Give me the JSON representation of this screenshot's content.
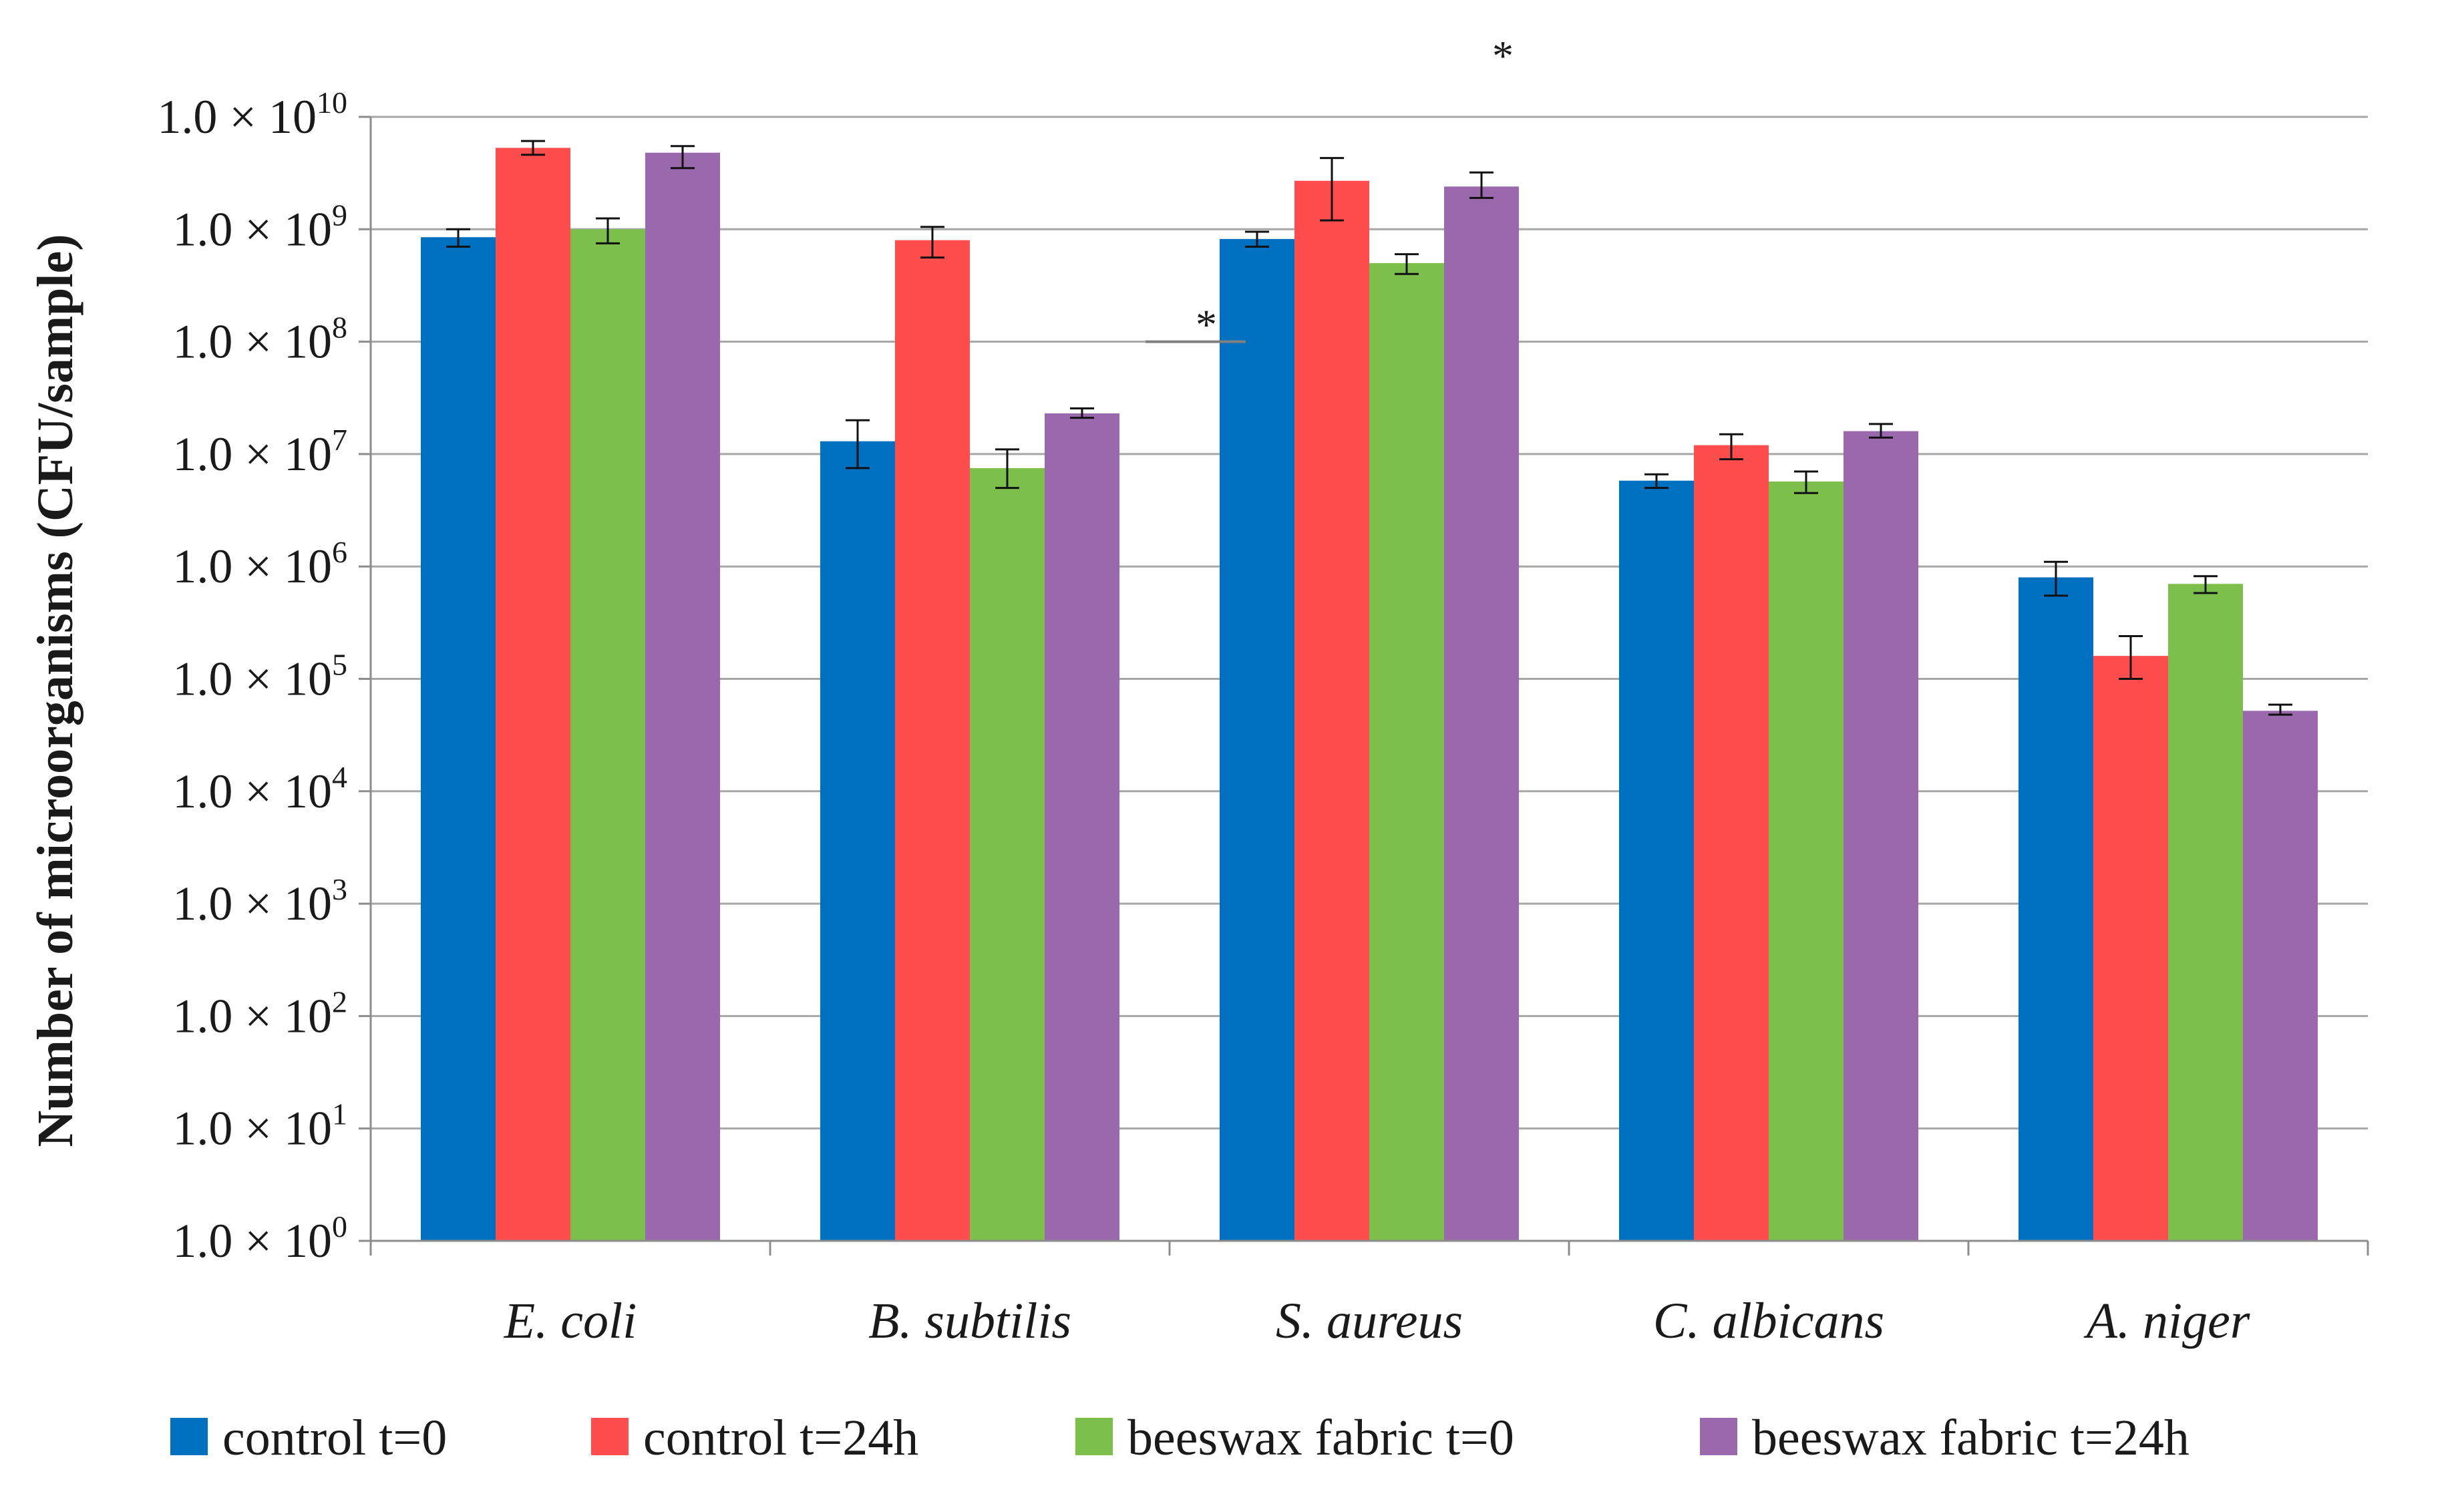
{
  "chart_data": {
    "type": "bar",
    "ylabel": "Number of microorganisms (CFU/sample)",
    "y_scale": "log",
    "ylim": [
      1,
      10000000000
    ],
    "y_ticks": [
      {
        "mantissa": "1.0 × 10",
        "exp": "0",
        "value": 1
      },
      {
        "mantissa": "1.0 × 10",
        "exp": "1",
        "value": 10
      },
      {
        "mantissa": "1.0 × 10",
        "exp": "2",
        "value": 100
      },
      {
        "mantissa": "1.0 × 10",
        "exp": "3",
        "value": 1000
      },
      {
        "mantissa": "1.0 × 10",
        "exp": "4",
        "value": 10000
      },
      {
        "mantissa": "1.0 × 10",
        "exp": "5",
        "value": 100000
      },
      {
        "mantissa": "1.0 × 10",
        "exp": "6",
        "value": 1000000
      },
      {
        "mantissa": "1.0 × 10",
        "exp": "7",
        "value": 10000000
      },
      {
        "mantissa": "1.0 × 10",
        "exp": "8",
        "value": 100000000
      },
      {
        "mantissa": "1.0 × 10",
        "exp": "9",
        "value": 1000000000
      },
      {
        "mantissa": "1.0 × 10",
        "exp": "10",
        "value": 10000000000
      }
    ],
    "grid": true,
    "legend_position": "bottom",
    "categories": [
      "E. coli",
      "B. subtilis",
      "S. aureus",
      "C. albicans",
      "A. niger"
    ],
    "series": [
      {
        "name": "control t=0",
        "color": "#0070c0",
        "values": [
          850000000,
          13000000,
          820000000,
          5800000,
          800000
        ],
        "err_low": [
          700000000,
          7500000,
          700000000,
          5000000,
          550000
        ],
        "err_high": [
          1000000000,
          20000000,
          950000000,
          6600000,
          1100000
        ]
      },
      {
        "name": "control t=24h",
        "color": "#ff4d4d",
        "values": [
          5300000000,
          800000000,
          2700000000,
          12000000,
          160000
        ],
        "err_low": [
          4600000000,
          560000000,
          1200000000,
          9000000,
          100000
        ],
        "err_high": [
          6100000000,
          1050000000,
          4300000000,
          15000000,
          240000
        ]
      },
      {
        "name": "beeswax fabric t=0",
        "color": "#7cc04b",
        "values": [
          1000000000,
          7500000,
          500000000,
          5700000,
          700000
        ],
        "err_low": [
          750000000,
          5000000,
          400000000,
          4500000,
          580000
        ],
        "err_high": [
          1250000000,
          11000000,
          600000000,
          7000000,
          820000
        ]
      },
      {
        "name": "beeswax fabric t=24h",
        "color": "#9a68ad",
        "values": [
          4800000000,
          23000000,
          2400000000,
          16000000,
          52000
        ],
        "err_low": [
          3500000000,
          21000000,
          1900000000,
          14000000,
          48000
        ],
        "err_high": [
          5500000000,
          25500000,
          3200000000,
          18500000,
          59000
        ]
      }
    ],
    "annotations": [
      "*",
      "*"
    ]
  }
}
